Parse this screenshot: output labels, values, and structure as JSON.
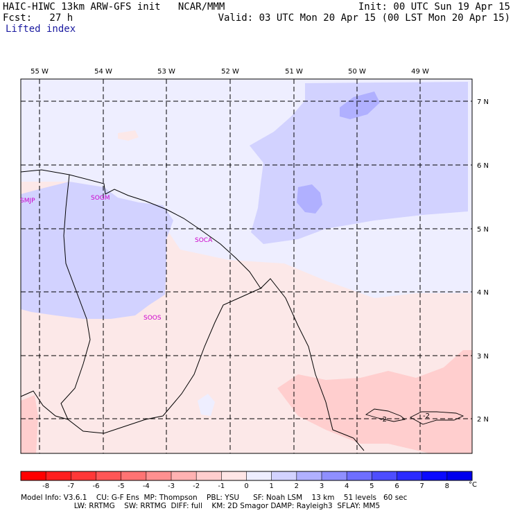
{
  "header": {
    "title_left": "HAIC-HIWC 13km ARW-GFS init   NCAR/MMM",
    "fcst": "Fcst:   27 h",
    "init": "Init: 00 UTC Sun 19 Apr 15",
    "valid": "Valid: 03 UTC Mon 20 Apr 15 (00 LST Mon 20 Apr 15)",
    "field": "Lifted index"
  },
  "map": {
    "lon_labels": [
      "55 W",
      "54 W",
      "53 W",
      "52 W",
      "51 W",
      "50 W",
      "49 W"
    ],
    "lat_labels": [
      "7 N",
      "6 N",
      "5 N",
      "4 N",
      "3 N",
      "2 N"
    ],
    "stations": [
      "SMJP",
      "SOGM",
      "SOCA",
      "SOOS"
    ],
    "contour_labels": [
      "-2",
      "-2"
    ]
  },
  "colorbar": {
    "ticks": [
      "-8",
      "-7",
      "-6",
      "-5",
      "-4",
      "-3",
      "-2",
      "-1",
      "0",
      "1",
      "2",
      "3",
      "4",
      "5",
      "6",
      "7",
      "8"
    ],
    "unit": "°C",
    "colors": [
      "#ff0000",
      "#ff1e1e",
      "#ff3838",
      "#ff5656",
      "#ff7373",
      "#ff9090",
      "#ffb2b2",
      "#ffcece",
      "#ffe6e6",
      "#eeeeff",
      "#d2d2ff",
      "#b0b0ff",
      "#8f8fff",
      "#6e6eff",
      "#4d4dff",
      "#2b2bff",
      "#0a0aff",
      "#0000ee"
    ]
  },
  "footer": {
    "line1": "Model Info: V3.6.1    CU: G-F Ens  MP: Thompson    PBL: YSU      SF: Noah LSM    13 km    51 levels   60 sec",
    "line2": "                       LW: RRTMG    SW: RRTMG  DIFF: full    KM: 2D Smagor DAMP: Rayleigh3  SFLAY: MM5"
  }
}
